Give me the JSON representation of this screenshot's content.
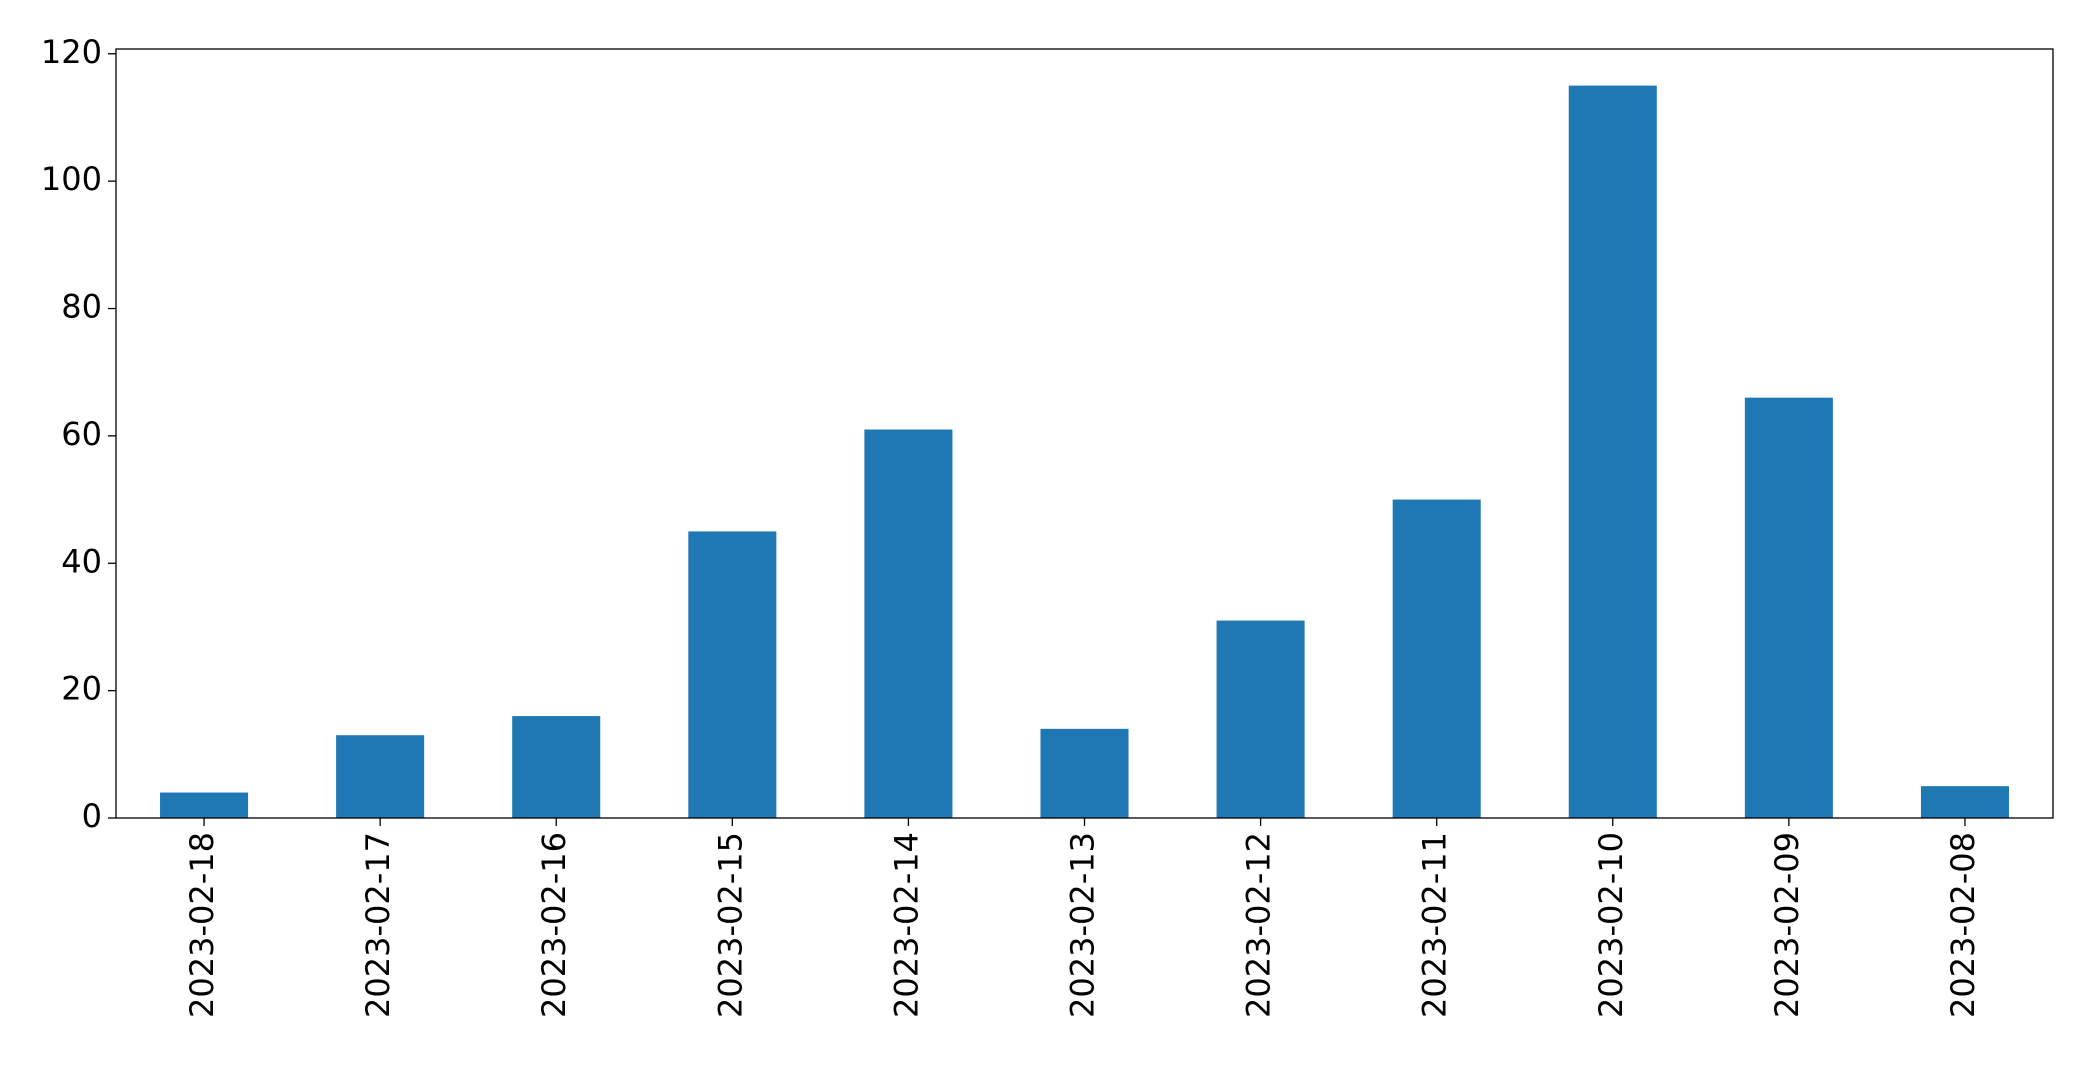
{
  "chart_data": {
    "type": "bar",
    "categories": [
      "2023-02-18",
      "2023-02-17",
      "2023-02-16",
      "2023-02-15",
      "2023-02-14",
      "2023-02-13",
      "2023-02-12",
      "2023-02-11",
      "2023-02-10",
      "2023-02-09",
      "2023-02-08"
    ],
    "values": [
      4,
      13,
      16,
      45,
      61,
      14,
      31,
      50,
      115,
      66,
      5
    ],
    "color": "#1f77b4",
    "ylim": [
      0,
      120.75
    ],
    "yticks": [
      0,
      20,
      40,
      60,
      80,
      100,
      120
    ],
    "grid": false
  }
}
